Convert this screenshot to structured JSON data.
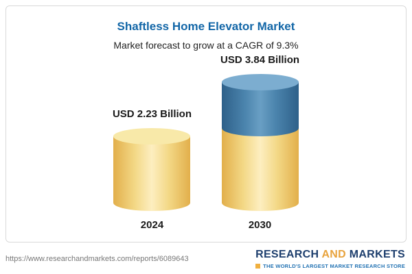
{
  "card": {
    "title": "Shaftless Home Elevator Market",
    "subtitle": "Market forecast to grow at a CAGR of 9.3%"
  },
  "chart_data": {
    "type": "bar",
    "categories": [
      "2024",
      "2030"
    ],
    "values": [
      2.23,
      3.84
    ],
    "value_labels": [
      "USD 2.23 Billion",
      "USD 3.84 Billion"
    ],
    "title": "Shaftless Home Elevator Market",
    "subtitle": "Market forecast to grow at a CAGR of 9.3%",
    "unit": "USD Billion",
    "cagr": "9.3%",
    "legend": "none",
    "grid": false,
    "colors": {
      "bar_base": "#f3d886",
      "bar_growth_top": "#4b84ad",
      "title_accent": "#1266a7"
    }
  },
  "footer": {
    "url": "https://www.researchandmarkets.com/reports/6089643",
    "logo_part1": "RESEARCH ",
    "logo_part2": "AND",
    "logo_part3": " MARKETS",
    "logo_tagline": "THE WORLD'S LARGEST MARKET RESEARCH STORE"
  }
}
